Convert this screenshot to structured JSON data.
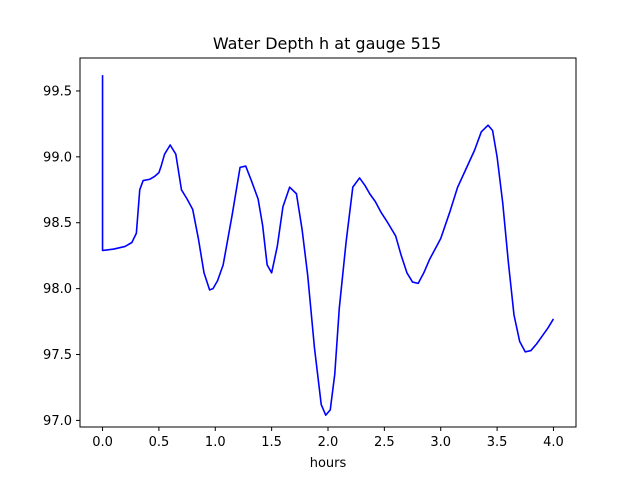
{
  "chart_data": {
    "type": "line",
    "title": "Water Depth h at gauge 515",
    "xlabel": "hours",
    "ylabel": "",
    "xlim": [
      -0.2,
      4.2
    ],
    "ylim": [
      96.95,
      99.75
    ],
    "grid": false,
    "xticks": [
      0.0,
      0.5,
      1.0,
      1.5,
      2.0,
      2.5,
      3.0,
      3.5,
      4.0
    ],
    "xtick_labels": [
      "0.0",
      "0.5",
      "1.0",
      "1.5",
      "2.0",
      "2.5",
      "3.0",
      "3.5",
      "4.0"
    ],
    "yticks": [
      97.0,
      97.5,
      98.0,
      98.5,
      99.0,
      99.5
    ],
    "ytick_labels": [
      "97.0",
      "97.5",
      "98.0",
      "98.5",
      "99.0",
      "99.5"
    ],
    "series": [
      {
        "color": "#0000ff",
        "x": [
          0.0,
          0.0,
          0.005,
          0.1,
          0.2,
          0.26,
          0.3,
          0.33,
          0.36,
          0.42,
          0.46,
          0.5,
          0.52,
          0.55,
          0.6,
          0.65,
          0.7,
          0.75,
          0.8,
          0.85,
          0.9,
          0.95,
          0.98,
          1.02,
          1.07,
          1.15,
          1.22,
          1.27,
          1.32,
          1.38,
          1.42,
          1.46,
          1.5,
          1.55,
          1.6,
          1.66,
          1.72,
          1.77,
          1.82,
          1.88,
          1.94,
          1.98,
          2.02,
          2.06,
          2.1,
          2.16,
          2.22,
          2.28,
          2.33,
          2.37,
          2.42,
          2.47,
          2.53,
          2.6,
          2.65,
          2.7,
          2.75,
          2.8,
          2.85,
          2.9,
          2.95,
          3.0,
          3.08,
          3.15,
          3.22,
          3.3,
          3.36,
          3.42,
          3.46,
          3.5,
          3.55,
          3.6,
          3.65,
          3.7,
          3.75,
          3.8,
          3.85,
          3.9,
          3.95,
          4.0
        ],
        "y": [
          99.62,
          98.29,
          98.29,
          98.3,
          98.32,
          98.35,
          98.42,
          98.75,
          98.82,
          98.83,
          98.85,
          98.88,
          98.93,
          99.02,
          99.09,
          99.02,
          98.75,
          98.68,
          98.6,
          98.38,
          98.12,
          97.99,
          98.0,
          98.06,
          98.18,
          98.56,
          98.92,
          98.93,
          98.82,
          98.68,
          98.48,
          98.18,
          98.12,
          98.32,
          98.62,
          98.77,
          98.72,
          98.45,
          98.1,
          97.55,
          97.12,
          97.04,
          97.08,
          97.35,
          97.85,
          98.35,
          98.77,
          98.84,
          98.78,
          98.72,
          98.66,
          98.58,
          98.5,
          98.4,
          98.25,
          98.12,
          98.05,
          98.04,
          98.12,
          98.22,
          98.3,
          98.38,
          98.58,
          98.77,
          98.9,
          99.05,
          99.19,
          99.24,
          99.2,
          99.0,
          98.65,
          98.2,
          97.8,
          97.6,
          97.52,
          97.53,
          97.58,
          97.64,
          97.7,
          97.77
        ]
      }
    ]
  }
}
